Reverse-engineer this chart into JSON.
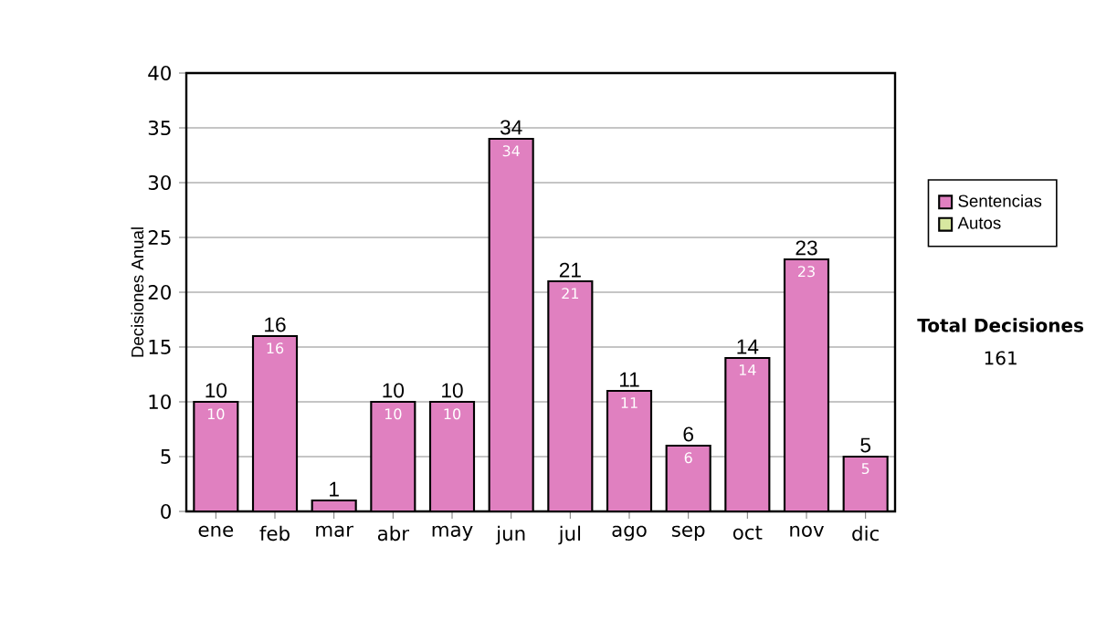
{
  "chart_data": {
    "type": "bar",
    "ylabel": "Decisiones Anual",
    "categories": [
      "ene",
      "feb",
      "mar",
      "abr",
      "may",
      "jun",
      "jul",
      "ago",
      "sep",
      "oct",
      "nov",
      "dic"
    ],
    "stacked": true,
    "series": [
      {
        "name": "Sentencias",
        "color": "#e080c0",
        "values": [
          10,
          16,
          1,
          10,
          10,
          34,
          21,
          11,
          6,
          14,
          23,
          5
        ],
        "value_labels": [
          "10",
          "16",
          null,
          "10",
          "10",
          "34",
          "21",
          "11",
          "6",
          "14",
          "23",
          "5"
        ]
      },
      {
        "name": "Autos",
        "color": "#d8e8a0",
        "values": [
          0,
          0,
          0,
          0,
          0,
          0,
          0,
          0,
          0,
          0,
          0,
          0
        ]
      }
    ],
    "totals": [
      "10",
      "16",
      "1",
      "10",
      "10",
      "34",
      "21",
      "11",
      "6",
      "14",
      "23",
      "5"
    ],
    "ylim": [
      0,
      40
    ],
    "yticks": [
      0,
      5,
      10,
      15,
      20,
      25,
      30,
      35,
      40
    ],
    "grid": "y",
    "legend": "right",
    "annotations": [
      "**Total Decisiones**",
      "161"
    ]
  }
}
